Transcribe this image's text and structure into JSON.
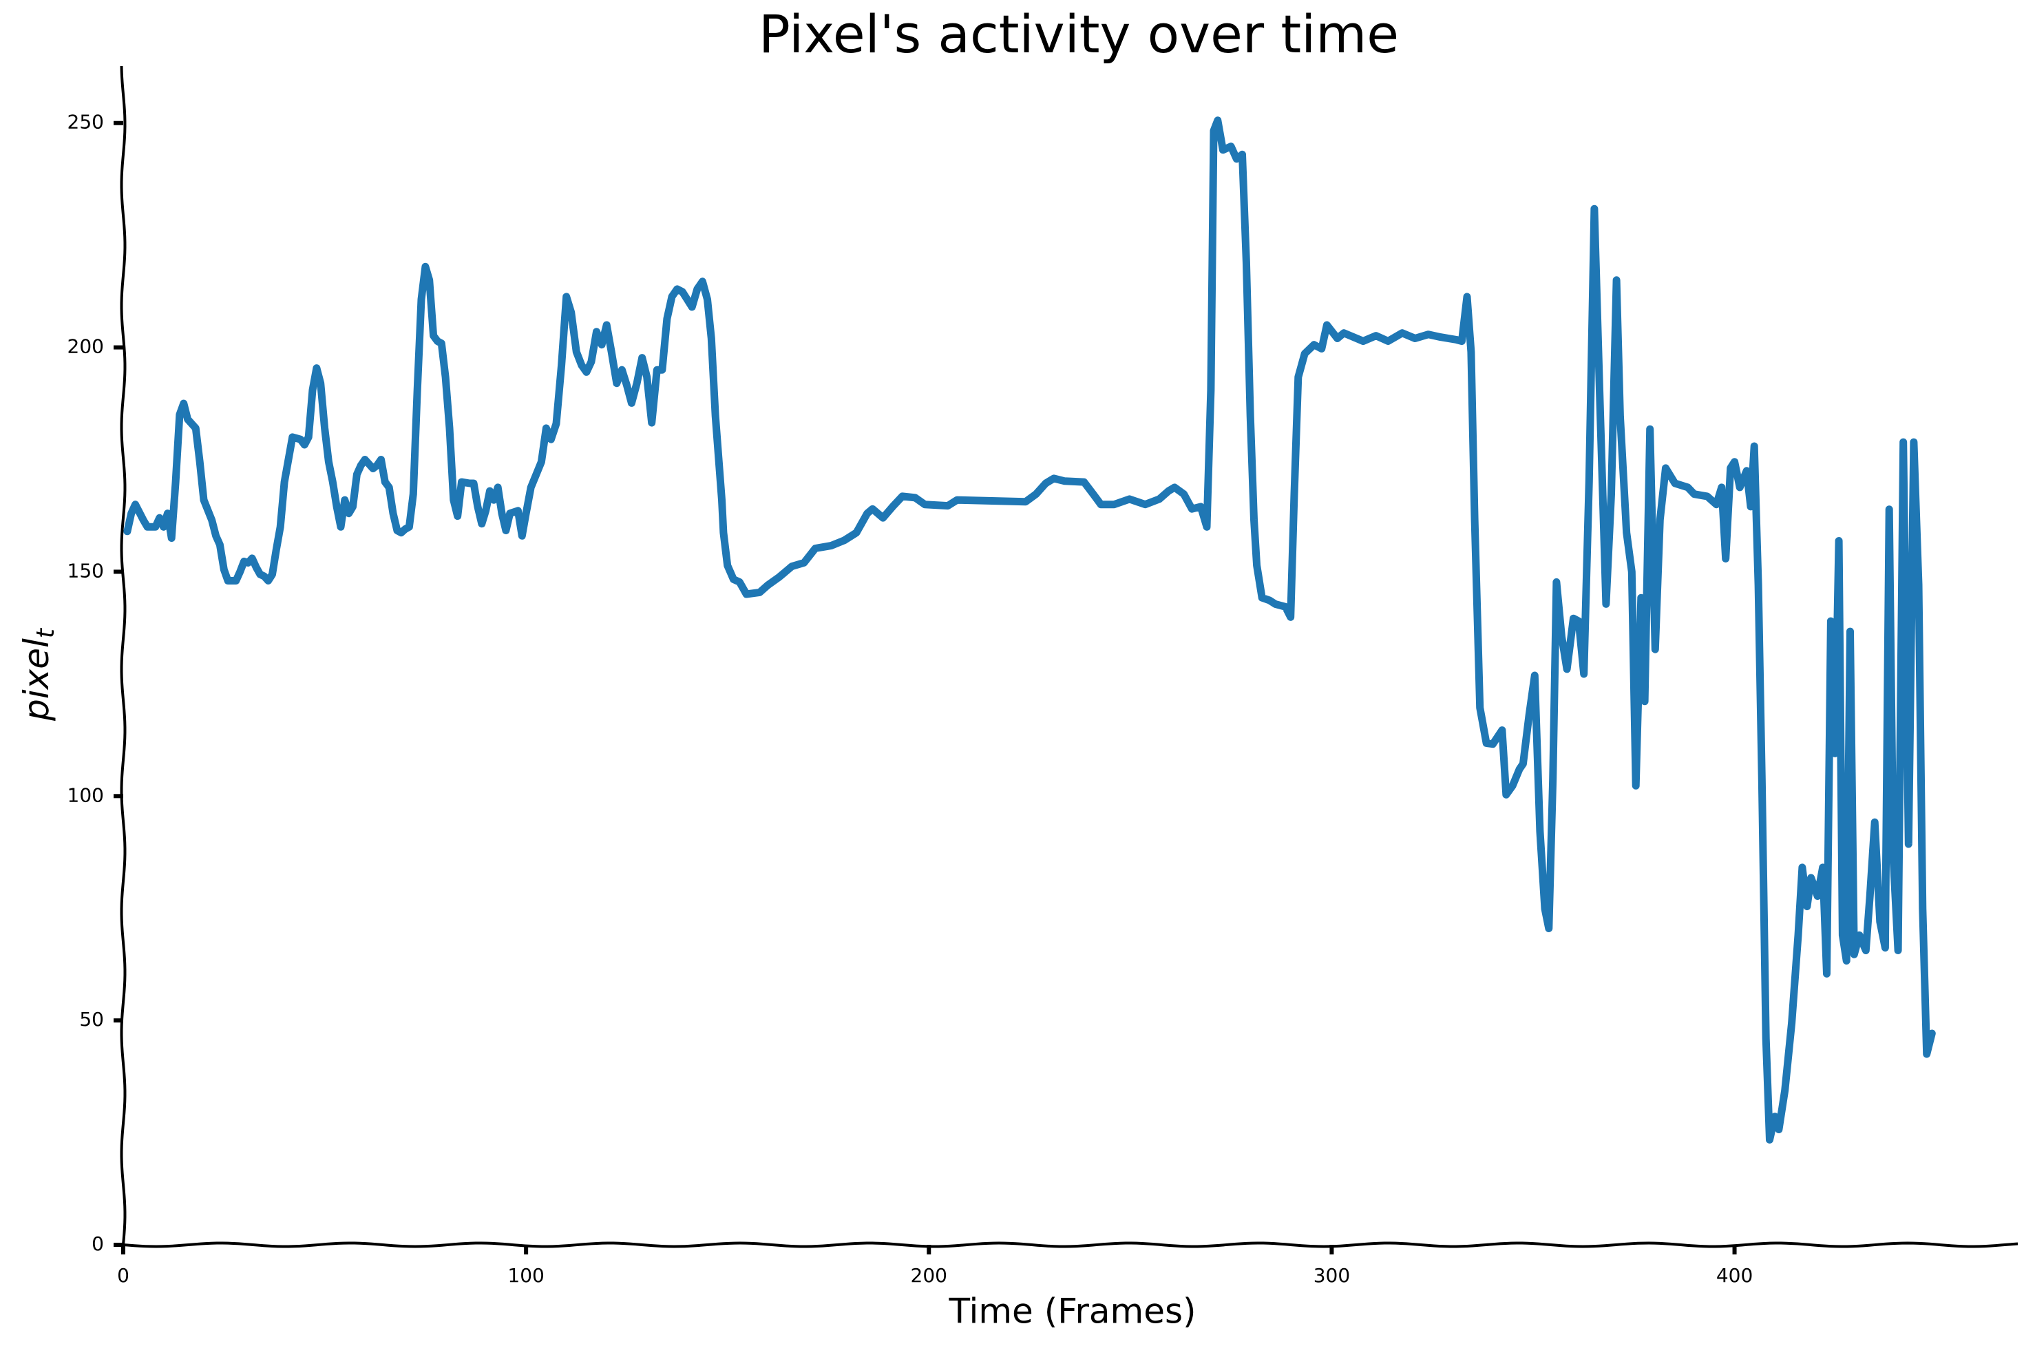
{
  "chart_data": {
    "type": "line",
    "title": "Pixel's activity over time",
    "xlabel": "Time (Frames)",
    "ylabel": "pixel",
    "ylabel_subscript": "t",
    "color": "#1f77b4",
    "xlim": [
      0,
      471
    ],
    "ylim": [
      0,
      263
    ],
    "xticks": [
      0,
      100,
      200,
      300,
      400
    ],
    "yticks": [
      0,
      50,
      100,
      150,
      200,
      250
    ],
    "x": [
      1,
      2,
      3,
      5,
      6,
      8,
      9,
      10,
      11,
      12,
      13,
      14,
      15,
      16,
      18,
      19,
      20,
      22,
      23,
      24,
      25,
      26,
      28,
      29,
      30,
      31,
      32,
      33,
      34,
      35,
      36,
      37,
      38,
      39,
      40,
      42,
      44,
      45,
      46,
      47,
      48,
      49,
      50,
      51,
      52,
      53,
      54,
      55,
      56,
      57,
      58,
      59,
      60,
      62,
      63,
      64,
      65,
      66,
      67,
      68,
      69,
      70,
      71,
      72,
      73,
      74,
      75,
      76,
      77,
      78,
      79,
      80,
      81,
      82,
      83,
      84,
      86,
      87,
      88,
      89,
      90,
      91,
      92,
      93,
      94,
      95,
      96,
      98,
      99,
      100,
      101.2,
      103.8,
      105,
      106.2,
      107.5,
      108.8,
      110,
      111.2,
      112.5,
      113.8,
      115,
      116.2,
      117.5,
      118.8,
      120,
      121.2,
      122.5,
      123.8,
      125,
      126.2,
      127.5,
      128.8,
      130,
      131.2,
      132.5,
      133.8,
      135,
      136.2,
      137.5,
      138.8,
      140,
      141.2,
      142.5,
      143.8,
      145,
      146,
      147,
      148.6,
      149,
      150,
      151.5,
      153,
      154.7,
      158,
      160,
      162.8,
      166,
      169,
      171.8,
      175.7,
      179,
      182,
      184.7,
      186,
      188.6,
      191,
      193.4,
      196.6,
      199,
      204.7,
      207,
      224,
      226.6,
      229,
      231,
      233.7,
      238.5,
      240.8,
      242.7,
      246,
      249.8,
      253.7,
      257.2,
      259.5,
      261,
      263.3,
      265.3,
      267.5,
      269,
      270,
      270.7,
      271.7,
      273,
      275,
      276.4,
      277.8,
      278.8,
      279.8,
      280.7,
      281.4,
      282.7,
      284.6,
      286,
      288.5,
      289.8,
      290.7,
      291.7,
      293.3,
      295.6,
      297.5,
      298.8,
      301.4,
      303,
      307.8,
      311,
      314,
      317.5,
      320.7,
      324,
      327,
      331,
      332.3,
      333.6,
      334.6,
      335.5,
      336.8,
      338.4,
      340,
      342.3,
      343.3,
      344.9,
      346.6,
      347.5,
      349,
      350.4,
      351.7,
      352.9,
      353.9,
      354.9,
      355.8,
      357.1,
      358.4,
      360,
      361.3,
      362.6,
      363.9,
      365.2,
      366.5,
      368.1,
      369.4,
      370.7,
      371.6,
      373.2,
      374.5,
      375.5,
      376.8,
      377.7,
      379,
      380.3,
      381.5,
      382.9,
      385.2,
      388.4,
      390,
      393.2,
      395.5,
      396.8,
      397.8,
      399,
      400,
      401.3,
      403,
      404,
      404.9,
      405.9,
      406.8,
      407.8,
      408.7,
      410,
      411,
      412.5,
      414.2,
      415.8,
      416.8,
      418,
      419,
      420.6,
      421.9,
      422.9,
      423.9,
      424.9,
      425.9,
      426.8,
      427.8,
      428.7,
      429.7,
      431,
      432.6,
      433.6,
      434.8,
      436.1,
      437.4,
      438.4,
      439.4,
      440.6,
      441.9,
      443.2,
      444.5,
      445.7,
      446.7,
      447.7,
      449
    ],
    "values": [
      159,
      163,
      165,
      161.5,
      160,
      160,
      162,
      160,
      163,
      157.5,
      170,
      185,
      187.5,
      184,
      182,
      174.5,
      166,
      161.5,
      158,
      156,
      150.5,
      148,
      148,
      150,
      152.3,
      152,
      153,
      151,
      149.4,
      149,
      148,
      149.4,
      155,
      160,
      170,
      180,
      179.5,
      178.3,
      180,
      190.5,
      195.4,
      192,
      182,
      174.5,
      170,
      164.5,
      160,
      166,
      163,
      164.5,
      171.7,
      173.7,
      175,
      173,
      173.7,
      175,
      170,
      168.8,
      163,
      159.2,
      158.7,
      159.5,
      160,
      167.3,
      190.5,
      210.7,
      218,
      215,
      202.6,
      201.4,
      200.9,
      193.4,
      182,
      166,
      162.4,
      170,
      169.7,
      169.7,
      164.5,
      160.7,
      163.6,
      168,
      166,
      168.8,
      163,
      159.2,
      163,
      163.6,
      158,
      163,
      168.8,
      174.5,
      182,
      179.5,
      183,
      196,
      211.3,
      207.8,
      199,
      196,
      194.5,
      196.8,
      203.5,
      200.6,
      205,
      199,
      192,
      195,
      191.6,
      187.6,
      192,
      197.7,
      193.4,
      183.2,
      195,
      195,
      206.4,
      211.3,
      213,
      212.4,
      210.7,
      209,
      213,
      214.7,
      210.7,
      202,
      184.7,
      166,
      158.7,
      151.4,
      148.3,
      147.7,
      145,
      145.4,
      147,
      148.8,
      151.2,
      152,
      155.2,
      155.8,
      157,
      158.7,
      163,
      164,
      162,
      164.5,
      166.8,
      166.5,
      165,
      164.7,
      166,
      165.6,
      167.3,
      169.7,
      170.8,
      170.2,
      170,
      167.3,
      165,
      165,
      166.2,
      165,
      166.2,
      168,
      168.8,
      167.3,
      164,
      164.5,
      160,
      190.5,
      248.3,
      250.6,
      244,
      244.8,
      242,
      243,
      219,
      184.7,
      161.6,
      151.4,
      144.2,
      143.6,
      142.8,
      142.2,
      139.9,
      167.3,
      193.4,
      198.6,
      200.6,
      199.7,
      205,
      202,
      203.2,
      201.4,
      202.6,
      201.4,
      203.2,
      202,
      202.9,
      202.3,
      201.7,
      201.4,
      211.3,
      199,
      161.6,
      119.7,
      111.8,
      111.6,
      114.7,
      100.3,
      102.3,
      106,
      107.2,
      118,
      126.9,
      92.2,
      74.9,
      70.5,
      103.8,
      147.7,
      135.5,
      128.3,
      139.6,
      139,
      127.2,
      170.2,
      230.9,
      190.5,
      142.8,
      167.3,
      215,
      184.7,
      158.7,
      150,
      102.3,
      144.2,
      121.1,
      181.8,
      132.7,
      161.6,
      173.1,
      169.7,
      168.8,
      167.3,
      166.8,
      165,
      168.8,
      152.9,
      173.1,
      174.5,
      168.8,
      172.5,
      164.5,
      178,
      147.1,
      103.8,
      46,
      23.4,
      28.6,
      25.7,
      34.4,
      49.4,
      69,
      84.1,
      75.4,
      81.8,
      77.7,
      84.1,
      60.4,
      139,
      109.5,
      156.9,
      69,
      63.3,
      136.7,
      64.7,
      69,
      65.6,
      77.7,
      94.2,
      72,
      66.2,
      163.9,
      86.4,
      65.6,
      178.9,
      89.3,
      178.9,
      147.1,
      74.9,
      42.5,
      47.1
    ]
  }
}
